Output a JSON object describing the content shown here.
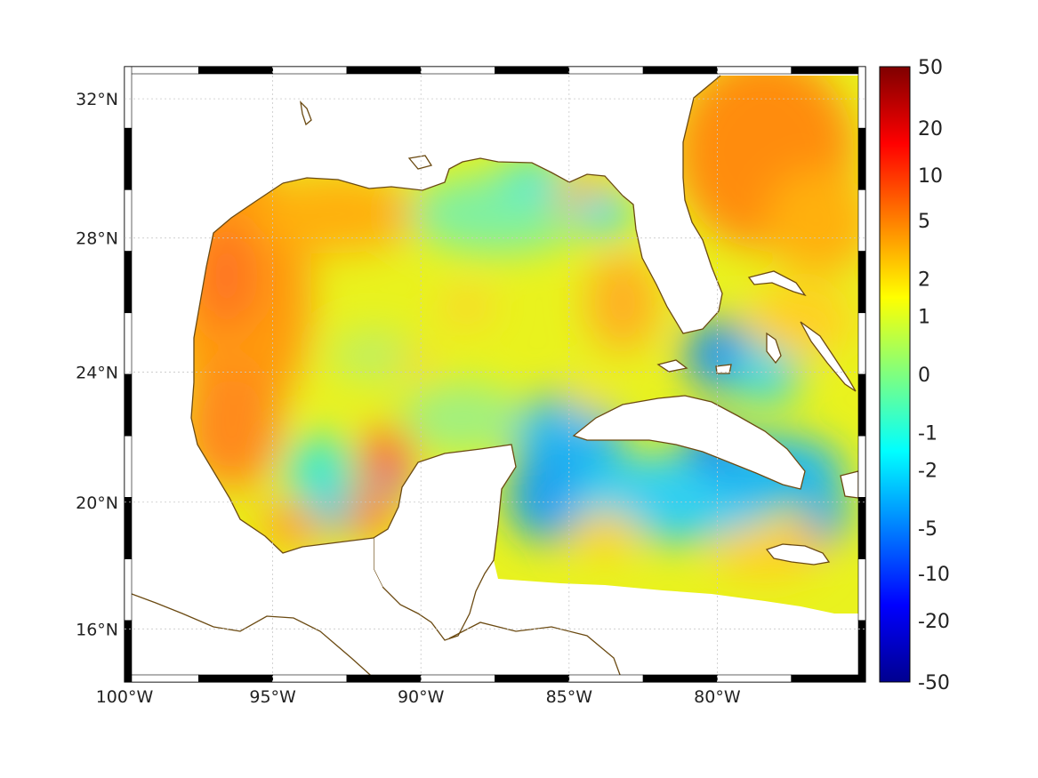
{
  "map": {
    "lat_labels": [
      "32°N",
      "28°N",
      "24°N",
      "20°N",
      "16°N"
    ],
    "lat_values": [
      32,
      28,
      24,
      20,
      16
    ],
    "lon_labels": [
      "100°W",
      "95°W",
      "90°W",
      "85°W",
      "80°W"
    ],
    "lon_values": [
      -100,
      -95,
      -90,
      -85,
      -80
    ],
    "lon_range": [
      -100,
      -75
    ],
    "lat_range": [
      14.3,
      32.9
    ],
    "grid": true,
    "coastline_color": "#6b4a12"
  },
  "colorbar": {
    "tick_labels": [
      "50",
      "20",
      "10",
      "5",
      "2",
      "1",
      "0",
      "-1",
      "-2",
      "-5",
      "-10",
      "-20",
      "-50"
    ],
    "colormap": "jet",
    "placement": "right"
  }
}
